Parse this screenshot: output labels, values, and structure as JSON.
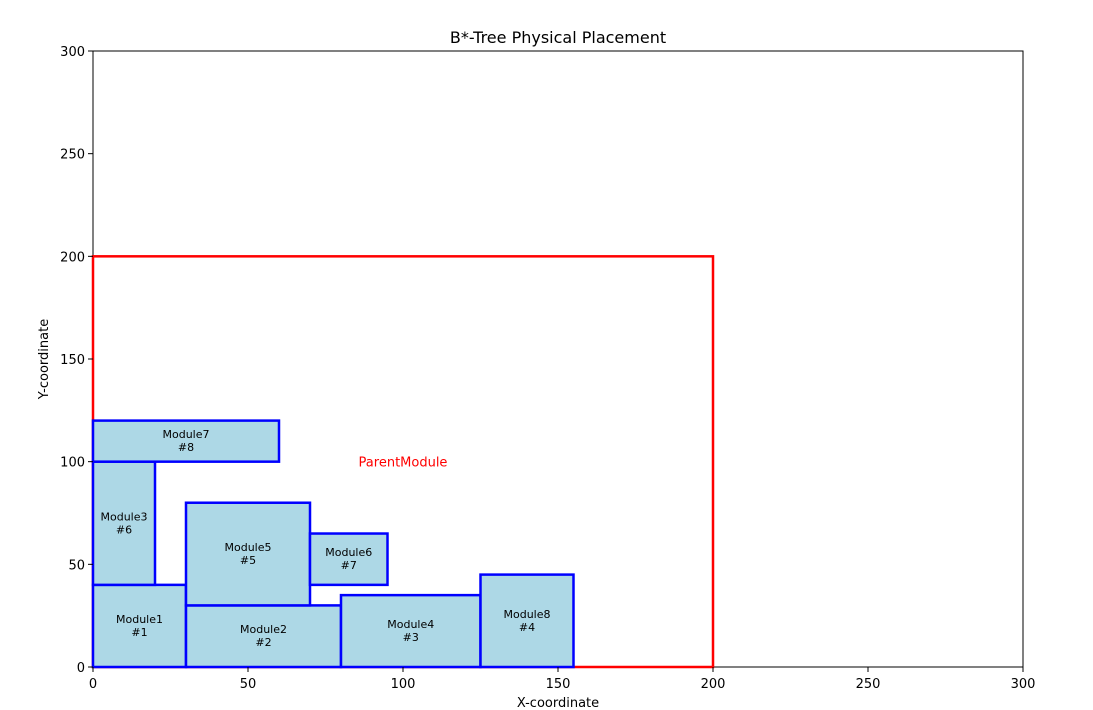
{
  "chart_data": {
    "type": "placement",
    "title": "B*-Tree Physical Placement",
    "xlabel": "X-coordinate",
    "ylabel": "Y-coordinate",
    "xlim": [
      0,
      300
    ],
    "ylim": [
      0,
      300
    ],
    "xticks": [
      0,
      50,
      100,
      150,
      200,
      250,
      300
    ],
    "yticks": [
      0,
      50,
      100,
      150,
      200,
      250,
      300
    ],
    "grid": false,
    "parent": {
      "name": "ParentModule",
      "x": 0,
      "y": 0,
      "w": 200,
      "h": 200,
      "label_x": 100,
      "label_y": 100,
      "color": "#ff0000"
    },
    "module_style": {
      "fill": "#add8e6",
      "stroke": "#0000ff"
    },
    "modules": [
      {
        "name": "Module1",
        "order": "#1",
        "x": 0,
        "y": 0,
        "w": 30,
        "h": 40
      },
      {
        "name": "Module2",
        "order": "#2",
        "x": 30,
        "y": 0,
        "w": 50,
        "h": 30
      },
      {
        "name": "Module4",
        "order": "#3",
        "x": 80,
        "y": 0,
        "w": 45,
        "h": 35
      },
      {
        "name": "Module8",
        "order": "#4",
        "x": 125,
        "y": 0,
        "w": 30,
        "h": 45
      },
      {
        "name": "Module5",
        "order": "#5",
        "x": 30,
        "y": 30,
        "w": 40,
        "h": 50
      },
      {
        "name": "Module3",
        "order": "#6",
        "x": 0,
        "y": 40,
        "w": 20,
        "h": 60
      },
      {
        "name": "Module6",
        "order": "#7",
        "x": 70,
        "y": 40,
        "w": 25,
        "h": 25
      },
      {
        "name": "Module7",
        "order": "#8",
        "x": 0,
        "y": 100,
        "w": 60,
        "h": 20
      }
    ]
  }
}
